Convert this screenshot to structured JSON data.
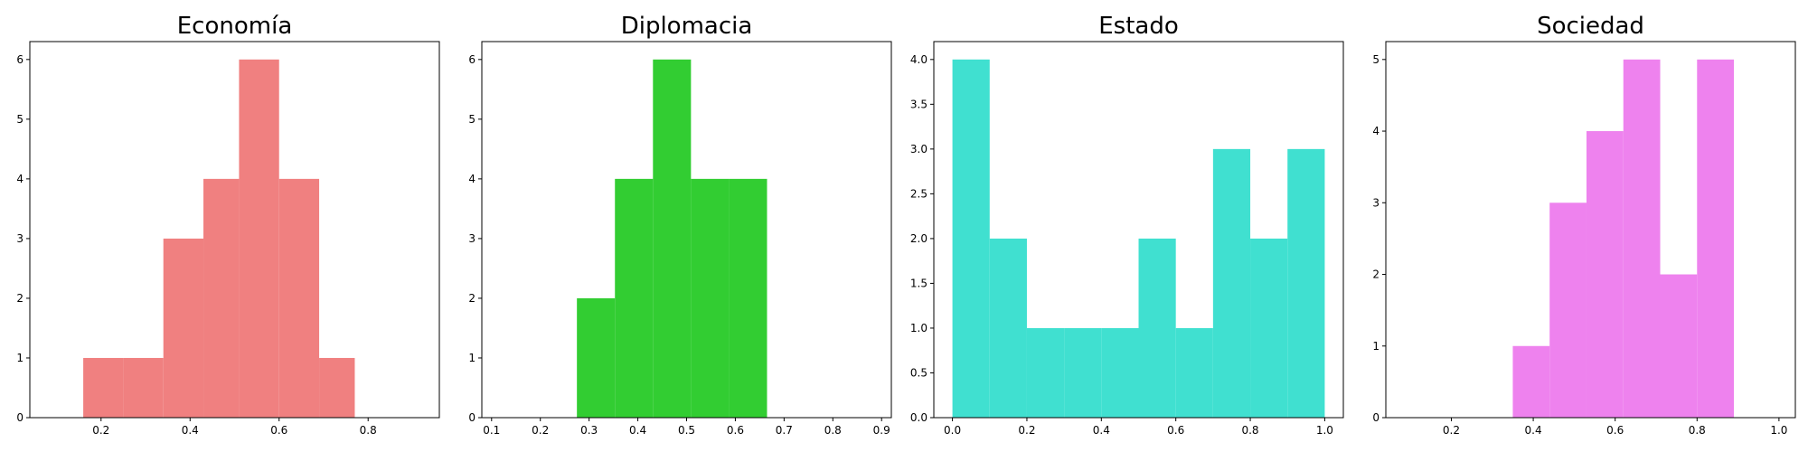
{
  "chart_data": [
    {
      "type": "bar",
      "title": "Economía",
      "xlabel": "",
      "ylabel": "",
      "color": "#f08080",
      "xlim": [
        0.04,
        0.96
      ],
      "ylim": [
        0,
        6.3
      ],
      "xticks": [
        0.2,
        0.4,
        0.6,
        0.8
      ],
      "yticks": [
        0,
        1,
        2,
        3,
        4,
        5,
        6
      ],
      "bins": [
        {
          "x0": 0.16,
          "x1": 0.25,
          "count": 1
        },
        {
          "x0": 0.25,
          "x1": 0.34,
          "count": 1
        },
        {
          "x0": 0.34,
          "x1": 0.43,
          "count": 3
        },
        {
          "x0": 0.43,
          "x1": 0.51,
          "count": 4
        },
        {
          "x0": 0.51,
          "x1": 0.6,
          "count": 6
        },
        {
          "x0": 0.6,
          "x1": 0.69,
          "count": 4
        },
        {
          "x0": 0.69,
          "x1": 0.77,
          "count": 1
        }
      ]
    },
    {
      "type": "bar",
      "title": "Diplomacia",
      "xlabel": "",
      "ylabel": "",
      "color": "#32cd32",
      "xlim": [
        0.08,
        0.92
      ],
      "ylim": [
        0,
        6.3
      ],
      "xticks": [
        0.1,
        0.2,
        0.3,
        0.4,
        0.5,
        0.6,
        0.7,
        0.8,
        0.9
      ],
      "yticks": [
        0,
        1,
        2,
        3,
        4,
        5,
        6
      ],
      "bins": [
        {
          "x0": 0.275,
          "x1": 0.353,
          "count": 2
        },
        {
          "x0": 0.353,
          "x1": 0.431,
          "count": 4
        },
        {
          "x0": 0.431,
          "x1": 0.509,
          "count": 6
        },
        {
          "x0": 0.509,
          "x1": 0.587,
          "count": 4
        },
        {
          "x0": 0.587,
          "x1": 0.665,
          "count": 4
        }
      ]
    },
    {
      "type": "bar",
      "title": "Estado",
      "xlabel": "",
      "ylabel": "",
      "color": "#40e0d0",
      "xlim": [
        -0.05,
        1.05
      ],
      "ylim": [
        0,
        4.2
      ],
      "xticks": [
        0.0,
        0.2,
        0.4,
        0.6,
        0.8,
        1.0
      ],
      "yticks": [
        0.0,
        0.5,
        1.0,
        1.5,
        2.0,
        2.5,
        3.0,
        3.5,
        4.0
      ],
      "bins": [
        {
          "x0": 0.0,
          "x1": 0.1,
          "count": 4
        },
        {
          "x0": 0.1,
          "x1": 0.2,
          "count": 2
        },
        {
          "x0": 0.2,
          "x1": 0.3,
          "count": 1
        },
        {
          "x0": 0.3,
          "x1": 0.4,
          "count": 1
        },
        {
          "x0": 0.4,
          "x1": 0.5,
          "count": 1
        },
        {
          "x0": 0.5,
          "x1": 0.6,
          "count": 2
        },
        {
          "x0": 0.6,
          "x1": 0.7,
          "count": 1
        },
        {
          "x0": 0.7,
          "x1": 0.8,
          "count": 3
        },
        {
          "x0": 0.8,
          "x1": 0.9,
          "count": 2
        },
        {
          "x0": 0.9,
          "x1": 1.0,
          "count": 3
        }
      ]
    },
    {
      "type": "bar",
      "title": "Sociedad",
      "xlabel": "",
      "ylabel": "",
      "color": "#ee82ee",
      "xlim": [
        0.04,
        1.04
      ],
      "ylim": [
        0,
        5.25
      ],
      "xticks": [
        0.2,
        0.4,
        0.6,
        0.8,
        1.0
      ],
      "yticks": [
        0,
        1,
        2,
        3,
        4,
        5
      ],
      "bins": [
        {
          "x0": 0.35,
          "x1": 0.44,
          "count": 1
        },
        {
          "x0": 0.44,
          "x1": 0.53,
          "count": 3
        },
        {
          "x0": 0.53,
          "x1": 0.62,
          "count": 4
        },
        {
          "x0": 0.62,
          "x1": 0.71,
          "count": 5
        },
        {
          "x0": 0.71,
          "x1": 0.8,
          "count": 2
        },
        {
          "x0": 0.8,
          "x1": 0.89,
          "count": 5
        }
      ]
    }
  ]
}
